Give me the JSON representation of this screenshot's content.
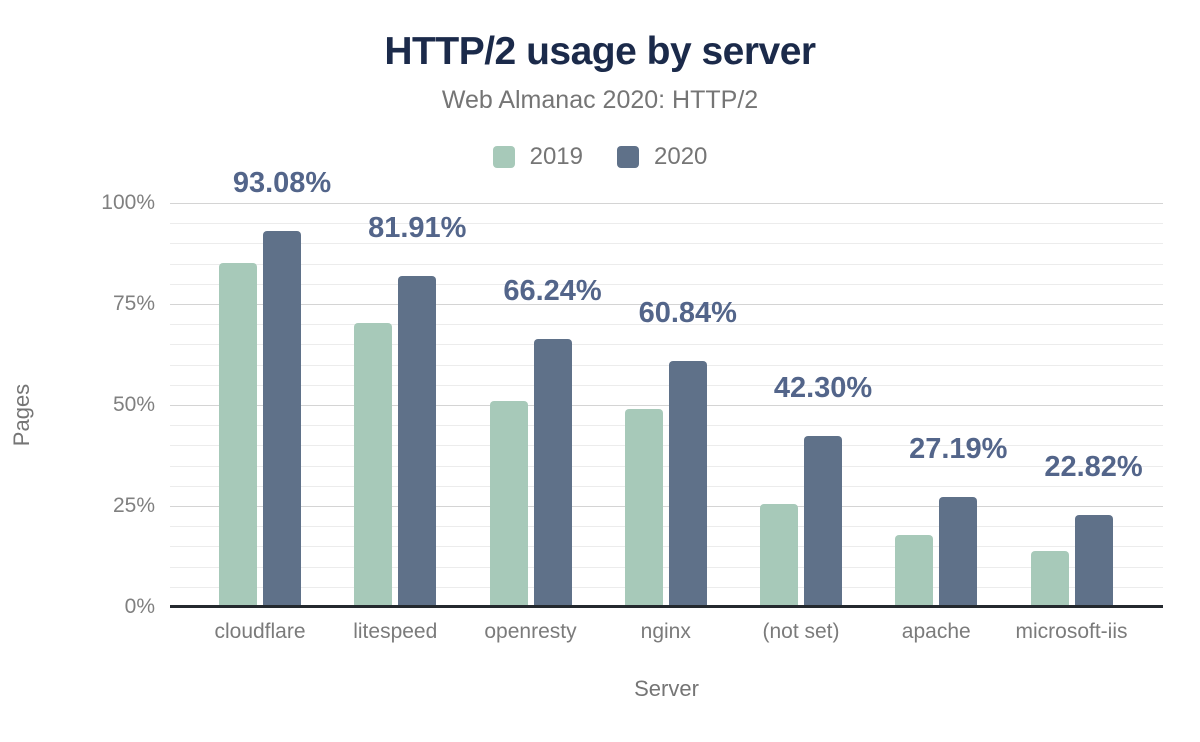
{
  "colors": {
    "title": "#1b2a4a",
    "subtitle_text": "#757575",
    "tick_text": "#808080",
    "category_text": "#7b7b7b",
    "grid_major": "#d4d4d4",
    "grid_minor": "#ececec",
    "axis_line": "#24292e",
    "value_label": "#53658a",
    "series_2019": "#a7c9b9",
    "series_2020": "#5f7189"
  },
  "chart_data": {
    "type": "bar",
    "title": "HTTP/2 usage by server",
    "subtitle": "Web Almanac 2020: HTTP/2",
    "xlabel": "Server",
    "ylabel": "Pages",
    "ylim": [
      0,
      100
    ],
    "grid": true,
    "minor_grid_step": 5,
    "major_grid_step": 25,
    "legend_position": "top",
    "y_ticks": [
      {
        "value": 0,
        "label": "0%"
      },
      {
        "value": 25,
        "label": "25%"
      },
      {
        "value": 50,
        "label": "50%"
      },
      {
        "value": 75,
        "label": "75%"
      },
      {
        "value": 100,
        "label": "100%"
      }
    ],
    "categories": [
      "cloudflare",
      "litespeed",
      "openresty",
      "nginx",
      "(not set)",
      "apache",
      "microsoft-iis"
    ],
    "series": [
      {
        "name": "2019",
        "color": "#a7c9b9",
        "values": [
          85.1,
          70.2,
          50.9,
          48.9,
          25.4,
          17.9,
          13.9
        ]
      },
      {
        "name": "2020",
        "color": "#5f7189",
        "values": [
          93.08,
          81.91,
          66.24,
          60.84,
          42.3,
          27.19,
          22.82
        ],
        "data_labels": [
          "93.08%",
          "81.91%",
          "66.24%",
          "60.84%",
          "42.30%",
          "27.19%",
          "22.82%"
        ]
      }
    ]
  }
}
